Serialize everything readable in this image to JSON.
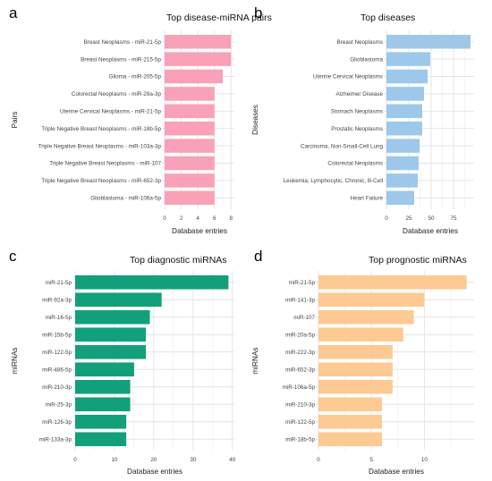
{
  "chart_data": [
    {
      "panel": "a",
      "type": "bar",
      "orientation": "horizontal",
      "title": "Top disease-miRNA pairs",
      "xlabel": "Database entries",
      "ylabel": "Pairs",
      "color": "#F8A1B9",
      "xlim": [
        0,
        8.4
      ],
      "xticks": [
        0,
        2,
        4,
        6,
        8
      ],
      "categories": [
        "Breast Neoplasms - miR-21-5p",
        "Breast Neoplasms - miR-215-5p",
        "Glioma - miR-205-5p",
        "Colorectal Neoplasms - miR-29a-3p",
        "Uterine Cervical Neoplasms - miR-21-5p",
        "Triple Negative Breast Neoplasms - miR-18b-5p",
        "Triple Negative Breast Neoplasms - miR-103a-3p",
        "Triple Negative Breast Neoplasms - miR-107",
        "Triple Negative Breast Neoplasms - miR-652-3p",
        "Glioblastoma - miR-106a-5p"
      ],
      "values": [
        8,
        8,
        7,
        6,
        6,
        6,
        6,
        6,
        6,
        6
      ]
    },
    {
      "panel": "b",
      "type": "bar",
      "orientation": "horizontal",
      "title": "Top diseases",
      "xlabel": "Database entries",
      "ylabel": "Diseases",
      "color": "#9DC8EA",
      "xlim": [
        0,
        98
      ],
      "xticks": [
        0,
        25,
        50,
        75
      ],
      "categories": [
        "Breast Neoplasms",
        "Glioblastoma",
        "Uterine Cervical Neoplasms",
        "Alzheimer Disease",
        "Stomach Neoplasms",
        "Prostatic Neoplasms",
        "Carcinoma, Non-Small-Cell Lung",
        "Colorectal Neoplasms",
        "Leukemia, Lymphocytic, Chronic, B-Cell",
        "Heart Failure"
      ],
      "values": [
        94,
        49,
        46,
        42,
        40,
        40,
        37,
        36,
        35,
        31
      ]
    },
    {
      "panel": "c",
      "type": "bar",
      "orientation": "horizontal",
      "title": "Top diagnostic miRNAs",
      "xlabel": "Database entries",
      "ylabel": "miRNAs",
      "color": "#12A07A",
      "xlim": [
        0,
        40.5
      ],
      "xticks": [
        0,
        10,
        20,
        30,
        40
      ],
      "categories": [
        "miR-21-5p",
        "miR-92a-3p",
        "miR-16-5p",
        "miR-15b-5p",
        "miR-122-5p",
        "miR-486-5p",
        "miR-210-3p",
        "miR-25-3p",
        "miR-126-3p",
        "miR-133a-3p"
      ],
      "values": [
        39,
        22,
        19,
        18,
        18,
        15,
        14,
        14,
        13,
        13
      ]
    },
    {
      "panel": "d",
      "type": "bar",
      "orientation": "horizontal",
      "title": "Top prognostic miRNAs",
      "xlabel": "Database entries",
      "ylabel": "miRNAs",
      "color": "#FCCA92",
      "xlim": [
        0,
        14.7
      ],
      "xticks": [
        0,
        5,
        10
      ],
      "categories": [
        "miR-21-5p",
        "miR-141-3p",
        "miR-107",
        "miR-20a-5p",
        "miR-222-3p",
        "miR-652-3p",
        "miR-106a-5p",
        "miR-210-3p",
        "miR-122-5p",
        "miR-18b-5p"
      ],
      "values": [
        14,
        10,
        9,
        8,
        7,
        7,
        7,
        6,
        6,
        6
      ]
    }
  ]
}
